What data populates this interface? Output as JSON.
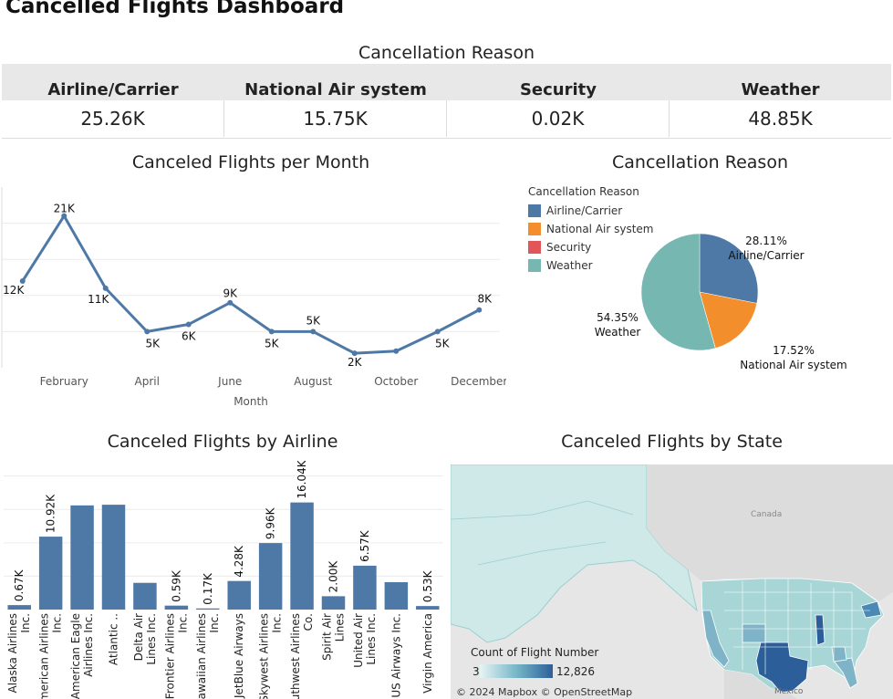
{
  "dashboard": {
    "title": "Cancelled Flights Dashboard"
  },
  "kpi": {
    "title": "Cancellation Reason",
    "headers": [
      "Airline/Carrier",
      "National Air system",
      "Security",
      "Weather"
    ],
    "values": [
      "25.26K",
      "15.75K",
      "0.02K",
      "48.85K"
    ]
  },
  "line_section": {
    "title": "Canceled Flights per Month"
  },
  "pie_section": {
    "title": "Cancellation Reason",
    "legend_title": "Cancellation Reason"
  },
  "bar_section": {
    "title": "Canceled Flights by Airline"
  },
  "map_section": {
    "title": "Canceled Flights by State",
    "legend_title": "Count of Flight Number",
    "legend_min": "3",
    "legend_max": "12,826",
    "attribution": "© 2024 Mapbox © OpenStreetMap",
    "labels": {
      "canada": "Canada",
      "mexico": "Mexico"
    },
    "colors": {
      "low": "#cfe9e9",
      "mid": "#7fb3c8",
      "high": "#2c5f9a"
    }
  },
  "colors": {
    "airline": "#4e79a7",
    "national": "#f28e2b",
    "security": "#e15759",
    "weather": "#76b7b2",
    "line": "#4e79a7",
    "bar": "#4e79a7"
  },
  "chart_data": [
    {
      "type": "line",
      "title": "Canceled Flights per Month",
      "xlabel": "Month",
      "ylabel": "",
      "x": [
        1,
        2,
        3,
        4,
        5,
        6,
        7,
        8,
        9,
        10,
        11,
        12
      ],
      "x_tick_labels": {
        "2": "February",
        "4": "April",
        "6": "June",
        "8": "August",
        "10": "October",
        "12": "December"
      },
      "values": [
        12,
        21,
        11,
        5,
        6,
        9,
        5,
        5,
        2,
        2.3,
        5,
        8
      ],
      "data_labels": [
        "12K",
        "21K",
        "11K",
        "5K",
        "6K",
        "9K",
        "5K",
        "5K",
        "2K",
        "",
        "5K",
        "8K"
      ],
      "ylim": [
        0,
        25
      ],
      "grid": true
    },
    {
      "type": "pie",
      "title": "Cancellation Reason",
      "categories": [
        "Airline/Carrier",
        "National Air system",
        "Security",
        "Weather"
      ],
      "values": [
        28.11,
        17.52,
        0.02,
        54.35
      ],
      "labels": [
        "28.11%",
        "17.52%",
        "",
        "54.35%"
      ],
      "legend": "top-left"
    },
    {
      "type": "bar",
      "title": "Canceled Flights by Airline",
      "categories": [
        "Alaska Airlines Inc.",
        "American Airlines Inc.",
        "American Eagle Airlines Inc.",
        "Atlantic ..",
        "Delta Air Lines Inc.",
        "Frontier Airlines Inc.",
        "Hawaiian Airlines Inc.",
        "JetBlue Airways",
        "Skywest Airlines Inc.",
        "Southwest Airlines Co.",
        "Spirit Air Lines",
        "United Air Lines Inc.",
        "US Airways Inc.",
        "Virgin America"
      ],
      "values": [
        0.67,
        10.92,
        15.6,
        15.7,
        4.0,
        0.59,
        0.17,
        4.28,
        9.96,
        16.04,
        2.0,
        6.57,
        4.1,
        0.53
      ],
      "data_labels": [
        "0.67K",
        "10.92K",
        "",
        "",
        "",
        "0.59K",
        "0.17K",
        "4.28K",
        "9.96K",
        "16.04K",
        "2.00K",
        "6.57K",
        "",
        "0.53K"
      ],
      "ylim": [
        0,
        22
      ],
      "grid": true
    }
  ]
}
